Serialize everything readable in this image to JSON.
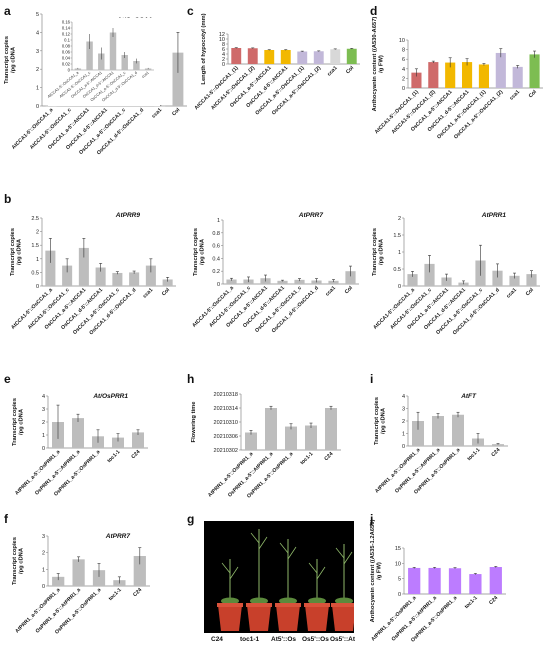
{
  "panel_labels": {
    "a": "a",
    "b": "b",
    "c": "c",
    "d": "d",
    "e": "e",
    "f": "f",
    "g": "g",
    "h": "h",
    "i": "i",
    "j": "j"
  },
  "colors": {
    "gray": "#bdbdbd",
    "red": "#cf6a6a",
    "yellow": "#f2b800",
    "lavender": "#c2b8d9",
    "lightgray": "#d8d8d8",
    "green": "#7dbd52",
    "purple": "#bc7cff"
  },
  "chart_data": [
    {
      "id": "a",
      "type": "bar",
      "title": "At/OsCCA1",
      "ylabel": "Transcript copies /pg cDNA",
      "ylim": [
        0,
        5
      ],
      "yticks": [
        0,
        1,
        2,
        3,
        4,
        5
      ],
      "categories": [
        "AtCCA1-5'::OsCCA1_a",
        "AtCCA1-5'::OsCCA1_c",
        "OsCCA1_a-5'::AtCCA1",
        "OsCCA1_d-5'::AtCCA1",
        "OsCCA1_a-5'::OsCCA1_c",
        "OsCCA1_d-5'::OsCCA1_d",
        "cca1",
        "Col"
      ],
      "values": [
        0.01,
        0.12,
        0.02,
        0.08,
        0.06,
        0.14,
        0.01,
        2.9
      ],
      "errors": [
        0.005,
        0.04,
        0.01,
        0.02,
        0.02,
        0.03,
        0.005,
        1.1
      ],
      "color": "gray",
      "inset": {
        "ylim": [
          0,
          0.16
        ],
        "yticks": [
          0,
          0.02,
          0.04,
          0.06,
          0.08,
          0.1,
          0.12,
          0.14,
          0.16
        ],
        "categories": [
          "AtCCA1-5'::OsCCA1_a",
          "AtCCA1-5'::OsCCA1_c",
          "OsCCA1_a-5'::AtCCA1",
          "OsCCA1_d-5'::AtCCA1",
          "OsCCA1_a-5'::OsCCA1_c",
          "OsCCA1_d-5'::OsCCA1_d",
          "cca1"
        ],
        "values": [
          0.005,
          0.095,
          0.055,
          0.125,
          0.05,
          0.03,
          0.005
        ],
        "errors": [
          0.002,
          0.025,
          0.02,
          0.015,
          0.01,
          0.008,
          0.002
        ]
      }
    },
    {
      "id": "c",
      "type": "bar",
      "ylabel": "Length of hypocotyl (mm)",
      "ylim": [
        0,
        12
      ],
      "yticks": [
        0,
        2,
        4,
        6,
        8,
        10,
        12
      ],
      "categories": [
        "AtCCA1-5'::OsCCA1_(1)",
        "AtCCA1-5'::OsCCA1_(2)",
        "OsCCA1_a-5'::AtCCA1",
        "OsCCA1_d-5'::AtCCA1",
        "OsCCA1_a-5'::OsCCA1_(1)",
        "OsCCA1_a-5'::OsCCA1_(2)",
        "cca1",
        "Col"
      ],
      "values": [
        6.4,
        6.3,
        5.6,
        5.6,
        5.0,
        5.1,
        5.9,
        6.1
      ],
      "errors": [
        0.15,
        0.15,
        0.15,
        0.15,
        0.15,
        0.15,
        0.15,
        0.15
      ],
      "colors": [
        "red",
        "red",
        "yellow",
        "yellow",
        "lavender",
        "lavender",
        "lightgray",
        "green"
      ]
    },
    {
      "id": "d",
      "type": "bar",
      "ylabel": "Anthocyanin content ((A530-A657) /g FW)",
      "ylim": [
        0,
        10
      ],
      "yticks": [
        0,
        2,
        4,
        6,
        8,
        10
      ],
      "categories": [
        "AtCCA1-5'::OsCCA1_(1)",
        "AtCCA1-5'::OsCCA1_(2)",
        "OsCCA1_a-5'::AtCCA1",
        "OsCCA1_d-5'::AtCCA1",
        "OsCCA1_a-5'::OsCCA1_(1)",
        "OsCCA1_a-5'::OsCCA1_(2)",
        "cca1",
        "Col"
      ],
      "values": [
        3.2,
        5.4,
        5.3,
        5.4,
        4.9,
        7.3,
        4.4,
        7.0
      ],
      "errors": [
        0.8,
        0.2,
        1.0,
        0.7,
        0.2,
        0.9,
        0.3,
        0.7
      ],
      "colors": [
        "red",
        "red",
        "yellow",
        "yellow",
        "yellow",
        "lavender",
        "lavender",
        "green"
      ]
    },
    {
      "id": "b1",
      "type": "bar",
      "title": "AtPRR9",
      "ylabel": "Transcript copies /pg cDNA",
      "ylim": [
        0,
        2.5
      ],
      "yticks": [
        0,
        0.5,
        1,
        1.5,
        2,
        2.5
      ],
      "categories": [
        "AtCCA1-5'::OsCCA1_a",
        "AtCCA1-5'::OsCCA1_c",
        "OsCCA1_a-5'::AtCCA1",
        "OsCCA1_d-5'::AtCCA1",
        "OsCCA1_a-5'::OsCCA1_c",
        "OsCCA1_d-5'::OsCCA1_d",
        "cca1",
        "Col"
      ],
      "values": [
        1.3,
        0.75,
        1.4,
        0.68,
        0.48,
        0.5,
        0.75,
        0.24
      ],
      "errors": [
        0.45,
        0.25,
        0.35,
        0.15,
        0.05,
        0.05,
        0.25,
        0.08
      ],
      "color": "gray"
    },
    {
      "id": "b2",
      "type": "bar",
      "title": "AtPRR7",
      "ylabel": "Transcript copies /pg cDNA",
      "ylim": [
        0,
        1
      ],
      "yticks": [
        0,
        0.2,
        0.4,
        0.6,
        0.8,
        1
      ],
      "categories": [
        "AtCCA1-5'::OsCCA1_a",
        "AtCCA1-5'::OsCCA1_c",
        "OsCCA1_a-5'::AtCCA1",
        "OsCCA1_d-5'::AtCCA1",
        "OsCCA1_a-5'::OsCCA1_c",
        "OsCCA1_d-5'::OsCCA1_d",
        "cca1",
        "Col"
      ],
      "values": [
        0.07,
        0.07,
        0.09,
        0.05,
        0.065,
        0.055,
        0.05,
        0.2
      ],
      "errors": [
        0.02,
        0.04,
        0.05,
        0.01,
        0.02,
        0.03,
        0.02,
        0.08
      ],
      "color": "gray"
    },
    {
      "id": "b3",
      "type": "bar",
      "title": "AtPRR1",
      "ylabel": "Transcript copies /pg cDNA",
      "ylim": [
        0,
        2
      ],
      "yticks": [
        0,
        0.5,
        1,
        1.5,
        2
      ],
      "categories": [
        "AtCCA1-5'::OsCCA1_a",
        "AtCCA1-5'::OsCCA1_c",
        "OsCCA1_a-5'::AtCCA1",
        "OsCCA1_d-5'::AtCCA1",
        "OsCCA1_a-5'::OsCCA1_c",
        "OsCCA1_d-5'::OsCCA1_d",
        "cca1",
        "Col"
      ],
      "values": [
        0.35,
        0.65,
        0.25,
        0.1,
        0.75,
        0.45,
        0.3,
        0.35
      ],
      "errors": [
        0.08,
        0.25,
        0.1,
        0.05,
        0.45,
        0.2,
        0.08,
        0.1
      ],
      "color": "gray"
    },
    {
      "id": "e",
      "type": "bar",
      "title": "At/OsPRR1",
      "ylabel": "Transcript copies /pg cDNA",
      "ylim": [
        0,
        4
      ],
      "yticks": [
        0,
        1,
        2,
        3,
        4
      ],
      "categories": [
        "AtPRR1_a-5'::OsPRR1_a",
        "OsPRR1_a-5'::AtPRR1_a",
        "OsPRR1_a-5'::OsPRR1_a",
        "toc1-1",
        "C24"
      ],
      "values": [
        2.0,
        2.3,
        0.9,
        0.8,
        1.2
      ],
      "errors": [
        1.3,
        0.3,
        0.5,
        0.3,
        0.2
      ],
      "color": "gray"
    },
    {
      "id": "h",
      "type": "bar",
      "ylabel": "Flowering time",
      "ylim": [
        20210302,
        20210318
      ],
      "yticks": [
        20210302,
        20210306,
        20210310,
        20210314,
        20210318
      ],
      "categories": [
        "AtPRR1_a-5'::OsPRR1_a",
        "OsPRR1_a-5'::AtPRR1_a",
        "OsPRR1_a-5'::OsPRR1_a",
        "toc1-1",
        "C24"
      ],
      "values": [
        20210307,
        20210314,
        20210308.7,
        20210309,
        20210314
      ],
      "errors": [
        0.6,
        0.5,
        0.8,
        0.7,
        0.5
      ],
      "color": "gray"
    },
    {
      "id": "i",
      "type": "bar",
      "title": "AtFT",
      "ylabel": "Transcript copies /pg cDNA",
      "ylim": [
        0,
        4
      ],
      "yticks": [
        0,
        1,
        2,
        3,
        4
      ],
      "categories": [
        "AtPRR1_a-5'::OsPRR1_a",
        "OsPRR1_a-5'::AtPRR1_a",
        "OsPRR1_a-5'::OsPRR1_a",
        "toc1-1",
        "C24"
      ],
      "values": [
        2.0,
        2.4,
        2.5,
        0.6,
        0.15
      ],
      "errors": [
        0.7,
        0.2,
        0.2,
        0.4,
        0.05
      ],
      "color": "gray"
    },
    {
      "id": "f",
      "type": "bar",
      "title": "AtPRR7",
      "ylabel": "Transcript copies /pg cDNA",
      "ylim": [
        0,
        3
      ],
      "yticks": [
        0,
        1,
        2,
        3
      ],
      "categories": [
        "AtPRR1_a-5'::OsPRR1_a",
        "OsPRR1_a-5'::AtPRR1_a",
        "OsPRR1_a-5'::OsPRR1_a",
        "toc1-1",
        "C24"
      ],
      "values": [
        0.55,
        1.6,
        0.95,
        0.35,
        1.8
      ],
      "errors": [
        0.2,
        0.15,
        0.4,
        0.2,
        0.5
      ],
      "color": "gray"
    },
    {
      "id": "j",
      "type": "bar",
      "ylabel": "Anthocyanin content ((A535-1.2A650) /g FW)",
      "ylim": [
        0,
        15
      ],
      "yticks": [
        0,
        5,
        10,
        15
      ],
      "categories": [
        "AtPRR1_a-5'::OsPRR1_a",
        "OsPRR1_a-5'::AtPRR1_a",
        "OsPRR1_a-5'::OsPRR1_a",
        "toc1-1",
        "C24"
      ],
      "values": [
        8.5,
        8.5,
        8.4,
        6.5,
        8.8
      ],
      "errors": [
        0.2,
        0.2,
        0.2,
        0.2,
        0.2
      ],
      "color": "purple"
    }
  ],
  "photo": {
    "labels": [
      "C24",
      "toc1-1",
      "At5'::Os",
      "Os5'::Os",
      "Os5'::At"
    ]
  }
}
